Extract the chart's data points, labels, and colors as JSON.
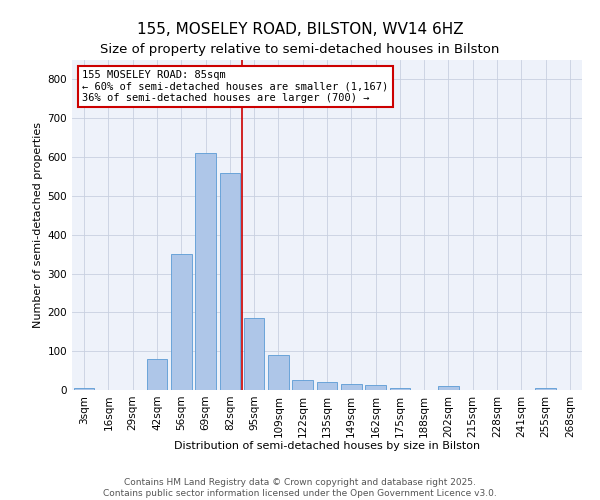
{
  "title": "155, MOSELEY ROAD, BILSTON, WV14 6HZ",
  "subtitle": "Size of property relative to semi-detached houses in Bilston",
  "xlabel": "Distribution of semi-detached houses by size in Bilston",
  "ylabel": "Number of semi-detached properties",
  "bin_labels": [
    "3sqm",
    "16sqm",
    "29sqm",
    "42sqm",
    "56sqm",
    "69sqm",
    "82sqm",
    "95sqm",
    "109sqm",
    "122sqm",
    "135sqm",
    "149sqm",
    "162sqm",
    "175sqm",
    "188sqm",
    "202sqm",
    "215sqm",
    "228sqm",
    "241sqm",
    "255sqm",
    "268sqm"
  ],
  "bar_values": [
    5,
    0,
    0,
    80,
    350,
    610,
    560,
    185,
    90,
    27,
    20,
    16,
    13,
    4,
    0,
    10,
    0,
    0,
    0,
    5,
    0
  ],
  "bar_color": "#aec6e8",
  "bar_edge_color": "#5b9bd5",
  "reference_line_bin": 6,
  "reference_line_color": "#cc0000",
  "annotation_text": "155 MOSELEY ROAD: 85sqm\n← 60% of semi-detached houses are smaller (1,167)\n36% of semi-detached houses are larger (700) →",
  "annotation_box_color": "#cc0000",
  "ylim": [
    0,
    850
  ],
  "yticks": [
    0,
    100,
    200,
    300,
    400,
    500,
    600,
    700,
    800
  ],
  "grid_color": "#c8d0e0",
  "bg_color": "#eef2fa",
  "footer_text": "Contains HM Land Registry data © Crown copyright and database right 2025.\nContains public sector information licensed under the Open Government Licence v3.0.",
  "title_fontsize": 11,
  "subtitle_fontsize": 9.5,
  "axis_label_fontsize": 8,
  "tick_fontsize": 7.5,
  "annotation_fontsize": 7.5,
  "footer_fontsize": 6.5
}
